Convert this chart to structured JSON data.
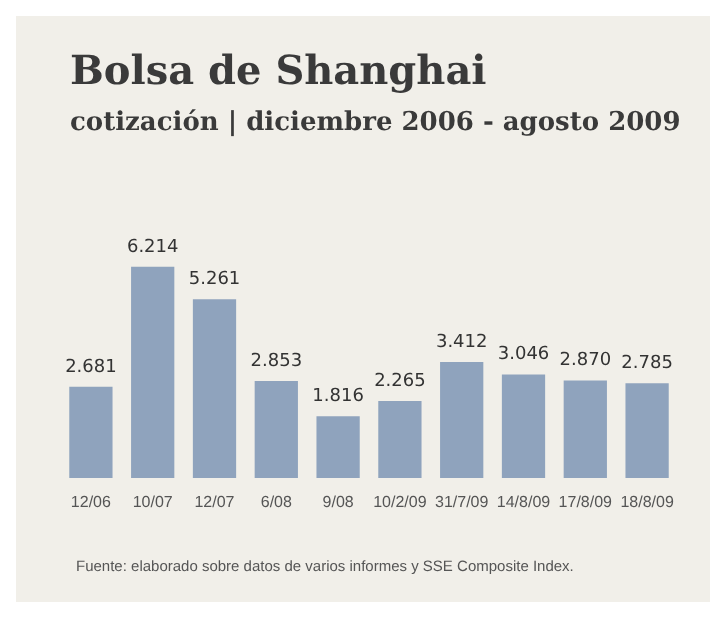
{
  "chart_data": {
    "type": "bar",
    "title": "Bolsa de Shanghai",
    "subtitle": "cotización | diciembre 2006 - agosto 2009",
    "categories": [
      "12/06",
      "10/07",
      "12/07",
      "6/08",
      "9/08",
      "10/2/09",
      "31/7/09",
      "14/8/09",
      "17/8/09",
      "18/8/09"
    ],
    "values": [
      2681,
      6214,
      5261,
      2853,
      1816,
      2265,
      3412,
      3046,
      2870,
      2785
    ],
    "value_labels": [
      "2.681",
      "6.214",
      "5.261",
      "2.853",
      "1.816",
      "2.265",
      "3.412",
      "3.046",
      "2.870",
      "2.785"
    ],
    "color": "#8fa3bd",
    "annotations": [
      "Fuente: elaborado sobre datos de varios informes y SSE Composite Index."
    ]
  }
}
